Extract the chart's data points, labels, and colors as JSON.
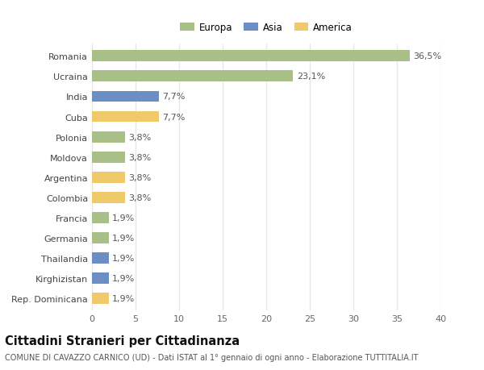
{
  "categories": [
    "Rep. Dominicana",
    "Kirghizistan",
    "Thailandia",
    "Germania",
    "Francia",
    "Colombia",
    "Argentina",
    "Moldova",
    "Polonia",
    "Cuba",
    "India",
    "Ucraina",
    "Romania"
  ],
  "values": [
    1.9,
    1.9,
    1.9,
    1.9,
    1.9,
    3.8,
    3.8,
    3.8,
    3.8,
    7.7,
    7.7,
    23.1,
    36.5
  ],
  "labels": [
    "1,9%",
    "1,9%",
    "1,9%",
    "1,9%",
    "1,9%",
    "3,8%",
    "3,8%",
    "3,8%",
    "3,8%",
    "7,7%",
    "7,7%",
    "23,1%",
    "36,5%"
  ],
  "colors": [
    "#f0c96b",
    "#6b8ec4",
    "#6b8ec4",
    "#a8bf87",
    "#a8bf87",
    "#f0c96b",
    "#f0c96b",
    "#a8bf87",
    "#a8bf87",
    "#f0c96b",
    "#6b8ec4",
    "#a8bf87",
    "#a8bf87"
  ],
  "legend_labels": [
    "Europa",
    "Asia",
    "America"
  ],
  "legend_colors": [
    "#a8bf87",
    "#6b8ec4",
    "#f0c96b"
  ],
  "xlim": [
    0,
    40
  ],
  "xticks": [
    0,
    5,
    10,
    15,
    20,
    25,
    30,
    35,
    40
  ],
  "title": "Cittadini Stranieri per Cittadinanza",
  "subtitle": "COMUNE DI CAVAZZO CARNICO (UD) - Dati ISTAT al 1° gennaio di ogni anno - Elaborazione TUTTITALIA.IT",
  "background_color": "#ffffff",
  "bar_height": 0.55,
  "grid_color": "#e8e8e8",
  "label_fontsize": 8,
  "tick_fontsize": 8,
  "title_fontsize": 10.5,
  "subtitle_fontsize": 7
}
